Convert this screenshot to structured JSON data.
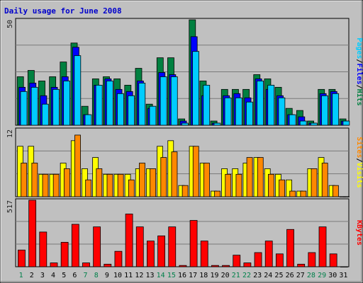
{
  "chart_data": [
    {
      "type": "bar",
      "title": "Daily usage for June 2008",
      "ymax_label": "50",
      "ylim": [
        0,
        50
      ],
      "side_label": [
        "Pages",
        "Files",
        "Hits"
      ],
      "x": [
        1,
        2,
        3,
        4,
        5,
        6,
        7,
        8,
        9,
        10,
        11,
        12,
        13,
        14,
        15,
        16,
        17,
        18,
        19,
        20,
        21,
        22,
        23,
        24,
        25,
        26,
        27,
        28,
        29,
        30,
        31
      ],
      "series": [
        {
          "name": "Hits",
          "color": "#008040",
          "values": [
            23,
            26,
            21,
            23,
            30,
            39,
            9,
            22,
            23,
            22,
            19,
            27,
            10,
            32,
            32,
            3,
            50,
            21,
            2,
            17,
            17,
            17,
            24,
            22,
            18,
            8,
            7,
            2,
            17,
            17,
            3
          ]
        },
        {
          "name": "Files",
          "color": "#0000ff",
          "values": [
            18,
            20,
            14,
            18,
            23,
            37,
            5,
            19,
            22,
            17,
            16,
            21,
            8,
            25,
            24,
            2,
            42,
            14,
            1,
            14,
            15,
            13,
            22,
            17,
            14,
            5,
            4,
            1,
            15,
            16,
            2
          ]
        },
        {
          "name": "Pages",
          "color": "#00ccff",
          "values": [
            16,
            18,
            10,
            17,
            21,
            33,
            5,
            19,
            21,
            15,
            14,
            20,
            9,
            23,
            23,
            1,
            35,
            19,
            1,
            13,
            13,
            11,
            21,
            19,
            13,
            5,
            2,
            1,
            14,
            15,
            2
          ]
        }
      ]
    },
    {
      "type": "bar",
      "ymax_label": "12",
      "ylim": [
        0,
        12
      ],
      "side_label": [
        "Sites",
        "Visits"
      ],
      "x": [
        1,
        2,
        3,
        4,
        5,
        6,
        7,
        8,
        9,
        10,
        11,
        12,
        13,
        14,
        15,
        16,
        17,
        18,
        19,
        20,
        21,
        22,
        23,
        24,
        25,
        26,
        27,
        28,
        29,
        30,
        31
      ],
      "series": [
        {
          "name": "Visits",
          "color": "#ffff00",
          "values": [
            9,
            9,
            4,
            4,
            6,
            10,
            5,
            7,
            4,
            4,
            4,
            5,
            5,
            9,
            10,
            2,
            9,
            6,
            1,
            5,
            5,
            6,
            7,
            5,
            4,
            3,
            1,
            5,
            7,
            2,
            0
          ]
        },
        {
          "name": "Sites",
          "color": "#ff8800",
          "values": [
            6,
            6,
            4,
            4,
            5,
            11,
            3,
            5,
            4,
            4,
            3,
            6,
            5,
            7,
            8,
            2,
            9,
            6,
            1,
            4,
            4,
            7,
            7,
            4,
            3,
            1,
            1,
            5,
            6,
            2,
            0
          ]
        }
      ]
    },
    {
      "type": "bar",
      "ymax_label": "517",
      "ylim": [
        0,
        517
      ],
      "side_label": [
        "KBytes"
      ],
      "x": [
        1,
        2,
        3,
        4,
        5,
        6,
        7,
        8,
        9,
        10,
        11,
        12,
        13,
        14,
        15,
        16,
        17,
        18,
        19,
        20,
        21,
        22,
        23,
        24,
        25,
        26,
        27,
        28,
        29,
        30,
        31
      ],
      "series": [
        {
          "name": "KBytes",
          "color": "#ff0000",
          "values": [
            130,
            517,
            270,
            30,
            190,
            330,
            30,
            310,
            20,
            120,
            410,
            310,
            200,
            240,
            310,
            10,
            360,
            200,
            10,
            10,
            90,
            30,
            110,
            200,
            100,
            290,
            20,
            110,
            310,
            100,
            0
          ]
        }
      ]
    }
  ],
  "x_ticks": [
    {
      "label": "1",
      "weekend": true
    },
    {
      "label": "2",
      "weekend": false
    },
    {
      "label": "3",
      "weekend": false
    },
    {
      "label": "4",
      "weekend": false
    },
    {
      "label": "5",
      "weekend": false
    },
    {
      "label": "6",
      "weekend": false
    },
    {
      "label": "7",
      "weekend": true
    },
    {
      "label": "8",
      "weekend": true
    },
    {
      "label": "9",
      "weekend": false
    },
    {
      "label": "10",
      "weekend": false
    },
    {
      "label": "11",
      "weekend": false
    },
    {
      "label": "12",
      "weekend": false
    },
    {
      "label": "13",
      "weekend": false
    },
    {
      "label": "14",
      "weekend": true
    },
    {
      "label": "15",
      "weekend": true
    },
    {
      "label": "16",
      "weekend": false
    },
    {
      "label": "17",
      "weekend": false
    },
    {
      "label": "18",
      "weekend": false
    },
    {
      "label": "19",
      "weekend": false
    },
    {
      "label": "20",
      "weekend": false
    },
    {
      "label": "21",
      "weekend": true
    },
    {
      "label": "22",
      "weekend": true
    },
    {
      "label": "23",
      "weekend": false
    },
    {
      "label": "24",
      "weekend": false
    },
    {
      "label": "25",
      "weekend": false
    },
    {
      "label": "26",
      "weekend": false
    },
    {
      "label": "27",
      "weekend": false
    },
    {
      "label": "28",
      "weekend": true
    },
    {
      "label": "29",
      "weekend": true
    },
    {
      "label": "30",
      "weekend": false
    },
    {
      "label": "31",
      "weekend": false
    }
  ],
  "colors": {
    "background": "#c0c0c0",
    "border": "#000000",
    "grid": "#7a7a7a",
    "weekday_label": "#000000",
    "weekend_label": "#00804a",
    "separator": "#000000"
  }
}
